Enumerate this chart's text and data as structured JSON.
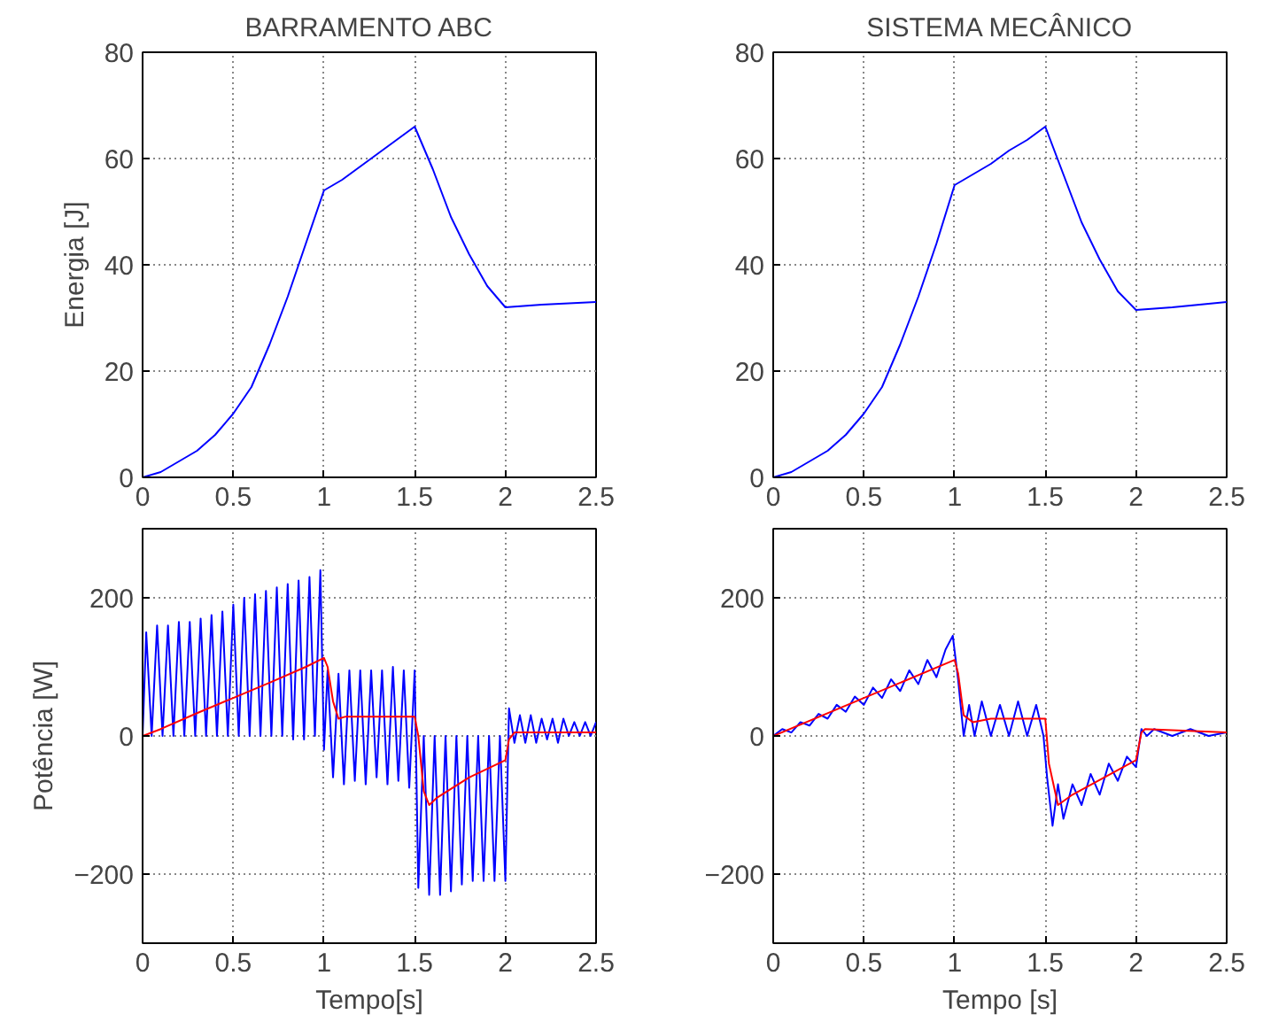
{
  "chart_data": [
    {
      "type": "line",
      "title": "BARRAMENTO ABC",
      "ylabel": "Energia [J]",
      "xlim": [
        0,
        2.5
      ],
      "ylim": [
        0,
        80
      ],
      "xticks": [
        0,
        0.5,
        1,
        1.5,
        2,
        2.5
      ],
      "yticks": [
        0,
        20,
        40,
        60,
        80
      ],
      "grid": true,
      "series": [
        {
          "color": "#0000ff",
          "x": [
            0,
            0.1,
            0.2,
            0.3,
            0.4,
            0.5,
            0.6,
            0.7,
            0.8,
            0.9,
            1.0,
            1.1,
            1.2,
            1.3,
            1.4,
            1.5,
            1.6,
            1.7,
            1.8,
            1.9,
            2.0,
            2.2,
            2.5
          ],
          "values": [
            0,
            1,
            3,
            5,
            8,
            12,
            17,
            25,
            34,
            44,
            54,
            56,
            58.5,
            61,
            63.5,
            66,
            58,
            49,
            42,
            36,
            32,
            32.5,
            33
          ]
        }
      ]
    },
    {
      "type": "line",
      "title": "SISTEMA MECÂNICO",
      "xlim": [
        0,
        2.5
      ],
      "ylim": [
        0,
        80
      ],
      "xticks": [
        0,
        0.5,
        1,
        1.5,
        2,
        2.5
      ],
      "yticks": [
        0,
        20,
        40,
        60,
        80
      ],
      "grid": true,
      "series": [
        {
          "color": "#0000ff",
          "x": [
            0,
            0.1,
            0.2,
            0.3,
            0.4,
            0.5,
            0.6,
            0.7,
            0.8,
            0.9,
            1.0,
            1.1,
            1.2,
            1.3,
            1.4,
            1.5,
            1.6,
            1.7,
            1.8,
            1.9,
            2.0,
            2.2,
            2.5
          ],
          "values": [
            0,
            1,
            3,
            5,
            8,
            12,
            17,
            25,
            34,
            44,
            55,
            57,
            59,
            61.5,
            63.5,
            66,
            57,
            48,
            41,
            35,
            31.5,
            32,
            33
          ]
        }
      ]
    },
    {
      "type": "line",
      "ylabel": "Potência [W]",
      "xlabel": "Tempo[s]",
      "xlim": [
        0,
        2.5
      ],
      "ylim": [
        -300,
        300
      ],
      "xticks": [
        0,
        0.5,
        1,
        1.5,
        2,
        2.5
      ],
      "yticks": [
        -200,
        0,
        200
      ],
      "grid": true,
      "series": [
        {
          "color": "#0000ff",
          "x": [
            0,
            0.02,
            0.05,
            0.08,
            0.11,
            0.14,
            0.17,
            0.2,
            0.23,
            0.26,
            0.29,
            0.32,
            0.35,
            0.38,
            0.41,
            0.44,
            0.47,
            0.5,
            0.53,
            0.56,
            0.59,
            0.62,
            0.65,
            0.68,
            0.71,
            0.74,
            0.77,
            0.8,
            0.83,
            0.86,
            0.89,
            0.92,
            0.95,
            0.98,
            1.0,
            1.02,
            1.05,
            1.08,
            1.11,
            1.14,
            1.17,
            1.2,
            1.23,
            1.26,
            1.29,
            1.32,
            1.35,
            1.38,
            1.41,
            1.44,
            1.47,
            1.5,
            1.52,
            1.55,
            1.58,
            1.61,
            1.64,
            1.67,
            1.7,
            1.73,
            1.76,
            1.79,
            1.82,
            1.85,
            1.88,
            1.91,
            1.94,
            1.97,
            2.0,
            2.02,
            2.05,
            2.08,
            2.11,
            2.14,
            2.17,
            2.2,
            2.23,
            2.26,
            2.29,
            2.32,
            2.35,
            2.38,
            2.41,
            2.44,
            2.47,
            2.5
          ],
          "values": [
            0,
            150,
            0,
            160,
            0,
            160,
            0,
            165,
            0,
            165,
            0,
            170,
            0,
            175,
            0,
            180,
            0,
            190,
            0,
            200,
            0,
            205,
            0,
            210,
            0,
            215,
            0,
            220,
            -5,
            225,
            -5,
            230,
            0,
            240,
            -20,
            95,
            -60,
            90,
            -70,
            95,
            -65,
            95,
            -70,
            95,
            -60,
            95,
            -70,
            100,
            -65,
            95,
            -75,
            95,
            -220,
            0,
            -230,
            0,
            -230,
            0,
            -225,
            0,
            -215,
            0,
            -210,
            0,
            -210,
            0,
            -210,
            0,
            -210,
            40,
            -10,
            30,
            -10,
            30,
            -10,
            25,
            -5,
            25,
            -10,
            25,
            0,
            20,
            0,
            20,
            0,
            20
          ]
        },
        {
          "color": "#ff0000",
          "x": [
            0,
            0.1,
            0.3,
            0.5,
            0.7,
            0.9,
            1.0,
            1.02,
            1.05,
            1.08,
            1.12,
            1.2,
            1.5,
            1.52,
            1.55,
            1.58,
            1.62,
            1.8,
            2.0,
            2.02,
            2.05,
            2.1,
            2.5
          ],
          "values": [
            0,
            10,
            33,
            55,
            77,
            100,
            113,
            100,
            50,
            25,
            28,
            28,
            28,
            0,
            -80,
            -100,
            -90,
            -60,
            -35,
            -5,
            5,
            5,
            5
          ]
        }
      ]
    },
    {
      "type": "line",
      "xlabel": "Tempo [s]",
      "xlim": [
        0,
        2.5
      ],
      "ylim": [
        -300,
        300
      ],
      "xticks": [
        0,
        0.5,
        1,
        1.5,
        2,
        2.5
      ],
      "yticks": [
        -200,
        0,
        200
      ],
      "grid": true,
      "series": [
        {
          "color": "#0000ff",
          "x": [
            0,
            0.05,
            0.1,
            0.15,
            0.2,
            0.25,
            0.3,
            0.35,
            0.4,
            0.45,
            0.5,
            0.55,
            0.6,
            0.65,
            0.7,
            0.75,
            0.8,
            0.85,
            0.9,
            0.95,
            0.99,
            1.02,
            1.05,
            1.08,
            1.11,
            1.15,
            1.2,
            1.25,
            1.3,
            1.35,
            1.4,
            1.45,
            1.49,
            1.51,
            1.54,
            1.57,
            1.6,
            1.65,
            1.7,
            1.75,
            1.8,
            1.85,
            1.9,
            1.95,
            2.0,
            2.03,
            2.06,
            2.1,
            2.2,
            2.3,
            2.4,
            2.5
          ],
          "values": [
            0,
            10,
            5,
            20,
            15,
            32,
            25,
            45,
            35,
            57,
            45,
            70,
            55,
            82,
            65,
            95,
            75,
            110,
            85,
            125,
            145,
            80,
            0,
            45,
            0,
            50,
            0,
            45,
            0,
            50,
            0,
            45,
            0,
            -60,
            -130,
            -70,
            -120,
            -70,
            -100,
            -55,
            -85,
            -40,
            -65,
            -30,
            -45,
            10,
            0,
            10,
            0,
            10,
            0,
            5
          ]
        },
        {
          "color": "#ff0000",
          "x": [
            0,
            0.5,
            1.0,
            1.02,
            1.05,
            1.1,
            1.2,
            1.5,
            1.52,
            1.57,
            1.65,
            2.0,
            2.03,
            2.05,
            2.5
          ],
          "values": [
            0,
            55,
            110,
            90,
            30,
            20,
            25,
            25,
            -40,
            -100,
            -85,
            -35,
            5,
            10,
            5
          ]
        }
      ]
    }
  ]
}
